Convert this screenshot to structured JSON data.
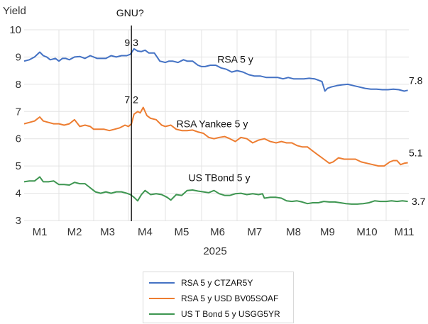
{
  "chart_data": {
    "type": "line",
    "title": "",
    "ylabel": "Yield",
    "xlabel": "2025",
    "ylim": [
      3,
      10
    ],
    "yticks": [
      3,
      4,
      5,
      6,
      7,
      8,
      9,
      10
    ],
    "xlim_months": [
      0,
      10.65
    ],
    "xticks": [
      {
        "label": "M1",
        "pos": 0.45
      },
      {
        "label": "M2",
        "pos": 1.45
      },
      {
        "label": "M3",
        "pos": 2.4
      },
      {
        "label": "M4",
        "pos": 3.45
      },
      {
        "label": "M5",
        "pos": 4.45
      },
      {
        "label": "M6",
        "pos": 5.45
      },
      {
        "label": "M7",
        "pos": 6.45
      },
      {
        "label": "M8",
        "pos": 7.5
      },
      {
        "label": "M9",
        "pos": 8.45
      },
      {
        "label": "M10",
        "pos": 9.5
      },
      {
        "label": "M11",
        "pos": 10.5
      }
    ],
    "month_gridlines": [
      1,
      2,
      3,
      4,
      5,
      6,
      7,
      8,
      9,
      10
    ],
    "grid": true,
    "legend_position": "bottom",
    "x_unit": "months since 2025-01-01",
    "series": [
      {
        "name": "RSA 5 y CTZAR5Y",
        "label": "RSA 5 y",
        "color": "#4472c4",
        "end_label": "7.8",
        "x": [
          0,
          0.15,
          0.3,
          0.45,
          0.55,
          0.65,
          0.75,
          0.9,
          1.0,
          1.1,
          1.2,
          1.3,
          1.45,
          1.6,
          1.75,
          1.9,
          2.0,
          2.1,
          2.2,
          2.35,
          2.5,
          2.65,
          2.8,
          2.95,
          3.05,
          3.15,
          3.25,
          3.35,
          3.45,
          3.55,
          3.7,
          3.85,
          4.0,
          4.1,
          4.2,
          4.35,
          4.5,
          4.6,
          4.75,
          4.9,
          5.0,
          5.1,
          5.25,
          5.4,
          5.55,
          5.7,
          5.85,
          6.0,
          6.15,
          6.3,
          6.45,
          6.6,
          6.75,
          6.9,
          7.05,
          7.2,
          7.35,
          7.5,
          7.65,
          7.8,
          7.95,
          8.1,
          8.2,
          8.3,
          8.38,
          8.45,
          8.55,
          8.7,
          8.85,
          9.0,
          9.15,
          9.3,
          9.45,
          9.6,
          9.75,
          9.9,
          10.05,
          10.2,
          10.35,
          10.5,
          10.6
        ],
        "y": [
          8.85,
          8.9,
          9.0,
          9.18,
          9.05,
          9.0,
          8.9,
          8.95,
          8.85,
          8.95,
          8.95,
          8.9,
          9.0,
          9.02,
          8.95,
          9.05,
          9.0,
          8.95,
          8.95,
          8.95,
          9.05,
          9.0,
          9.05,
          9.05,
          9.1,
          9.3,
          9.22,
          9.2,
          9.25,
          9.15,
          9.15,
          8.85,
          8.8,
          8.85,
          8.85,
          8.8,
          8.9,
          8.85,
          8.85,
          8.7,
          8.65,
          8.65,
          8.7,
          8.7,
          8.6,
          8.55,
          8.45,
          8.5,
          8.45,
          8.35,
          8.3,
          8.3,
          8.25,
          8.25,
          8.25,
          8.2,
          8.25,
          8.2,
          8.2,
          8.2,
          8.22,
          8.2,
          8.15,
          8.1,
          7.75,
          7.85,
          7.9,
          7.95,
          7.98,
          8.0,
          7.95,
          7.9,
          7.85,
          7.82,
          7.82,
          7.8,
          7.8,
          7.82,
          7.8,
          7.75,
          7.78
        ]
      },
      {
        "name": "RSA 5 y USD BV05SOAF",
        "label": "RSA Yankee 5 y",
        "color": "#ed7d31",
        "end_label": "5.1",
        "x": [
          0,
          0.15,
          0.3,
          0.45,
          0.55,
          0.7,
          0.85,
          1.0,
          1.15,
          1.3,
          1.45,
          1.6,
          1.75,
          1.9,
          2.0,
          2.15,
          2.3,
          2.45,
          2.6,
          2.75,
          2.9,
          3.0,
          3.08,
          3.15,
          3.25,
          3.32,
          3.4,
          3.5,
          3.6,
          3.75,
          3.9,
          4.0,
          4.15,
          4.3,
          4.45,
          4.6,
          4.75,
          4.9,
          5.05,
          5.2,
          5.35,
          5.5,
          5.65,
          5.8,
          5.95,
          6.1,
          6.25,
          6.4,
          6.55,
          6.7,
          6.85,
          7.0,
          7.15,
          7.3,
          7.45,
          7.6,
          7.75,
          7.9,
          8.05,
          8.2,
          8.35,
          8.5,
          8.6,
          8.75,
          8.9,
          9.05,
          9.2,
          9.35,
          9.5,
          9.65,
          9.8,
          9.95,
          10.1,
          10.2,
          10.3,
          10.4,
          10.5,
          10.6
        ],
        "y": [
          6.55,
          6.6,
          6.65,
          6.8,
          6.65,
          6.6,
          6.55,
          6.55,
          6.5,
          6.55,
          6.7,
          6.45,
          6.5,
          6.45,
          6.35,
          6.35,
          6.35,
          6.3,
          6.35,
          6.4,
          6.5,
          6.45,
          6.55,
          6.9,
          7.0,
          6.95,
          7.15,
          6.85,
          6.75,
          6.7,
          6.5,
          6.45,
          6.5,
          6.35,
          6.3,
          6.3,
          6.32,
          6.25,
          6.2,
          6.05,
          6.0,
          6.05,
          6.08,
          6.0,
          5.9,
          6.05,
          6.0,
          5.85,
          5.95,
          6.0,
          5.9,
          5.85,
          5.9,
          5.85,
          5.85,
          5.75,
          5.7,
          5.7,
          5.55,
          5.4,
          5.25,
          5.1,
          5.15,
          5.3,
          5.25,
          5.25,
          5.25,
          5.15,
          5.1,
          5.05,
          5.0,
          5.0,
          5.15,
          5.2,
          5.2,
          5.05,
          5.1,
          5.12
        ]
      },
      {
        "name": "US T Bond 5 y USGG5YR",
        "label": "US TBond 5 y",
        "color": "#3e9651",
        "end_label": "3.7",
        "x": [
          0,
          0.15,
          0.3,
          0.45,
          0.55,
          0.7,
          0.85,
          1.0,
          1.15,
          1.3,
          1.45,
          1.6,
          1.75,
          1.9,
          2.05,
          2.2,
          2.35,
          2.5,
          2.65,
          2.8,
          2.95,
          3.05,
          3.15,
          3.25,
          3.35,
          3.45,
          3.6,
          3.75,
          3.9,
          4.05,
          4.15,
          4.3,
          4.45,
          4.6,
          4.75,
          4.9,
          5.05,
          5.2,
          5.35,
          5.5,
          5.65,
          5.8,
          5.95,
          6.1,
          6.25,
          6.4,
          6.55,
          6.65,
          6.7,
          6.85,
          7.0,
          7.15,
          7.3,
          7.45,
          7.6,
          7.75,
          7.9,
          8.05,
          8.2,
          8.35,
          8.5,
          8.65,
          8.8,
          8.95,
          9.1,
          9.25,
          9.4,
          9.55,
          9.7,
          9.85,
          10.0,
          10.15,
          10.3,
          10.45,
          10.6
        ],
        "y": [
          4.42,
          4.45,
          4.45,
          4.6,
          4.42,
          4.42,
          4.45,
          4.32,
          4.32,
          4.3,
          4.4,
          4.35,
          4.35,
          4.2,
          4.05,
          4.0,
          4.05,
          4.0,
          4.05,
          4.05,
          4.0,
          3.95,
          3.85,
          3.72,
          3.95,
          4.1,
          3.95,
          3.98,
          3.95,
          3.85,
          3.75,
          3.95,
          3.92,
          4.1,
          4.12,
          4.08,
          4.05,
          4.02,
          4.1,
          3.98,
          3.92,
          3.92,
          3.98,
          4.0,
          3.95,
          3.98,
          3.95,
          3.98,
          3.82,
          3.85,
          3.85,
          3.82,
          3.72,
          3.7,
          3.72,
          3.68,
          3.62,
          3.65,
          3.65,
          3.7,
          3.68,
          3.68,
          3.65,
          3.62,
          3.6,
          3.6,
          3.62,
          3.65,
          3.72,
          3.7,
          3.7,
          3.72,
          3.7,
          3.72,
          3.7
        ]
      }
    ],
    "annotations": [
      {
        "text": "GNU?",
        "type": "event-line",
        "x": 3.08
      },
      {
        "text": "9.3",
        "series": 0,
        "x": 3.08,
        "y": 9.3
      },
      {
        "text": "7.2",
        "series": 1,
        "x": 3.08,
        "y": 7.2
      }
    ]
  }
}
